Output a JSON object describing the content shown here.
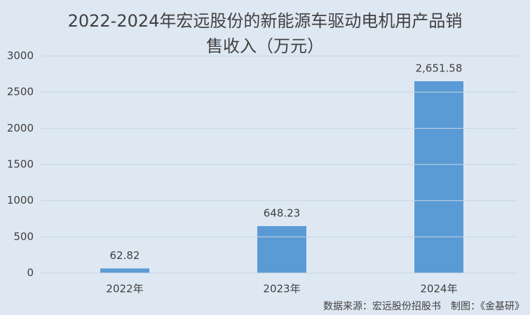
{
  "chart_data": {
    "type": "bar",
    "title": "2022-2024年宏远股份的新能源车驱动电机用产品销售收入（万元）",
    "categories": [
      "2022年",
      "2023年",
      "2024年"
    ],
    "values": [
      62.82,
      648.23,
      2651.58
    ],
    "value_labels": [
      "62.82",
      "648.23",
      "2,651.58"
    ],
    "color": "#5b9bd5",
    "ylim": [
      0,
      3000
    ],
    "yticks": [
      0,
      500,
      1000,
      1500,
      2000,
      2500,
      3000
    ],
    "grid": true,
    "note": "数据来源：宏远股份招股书　制图：《金基研》"
  }
}
